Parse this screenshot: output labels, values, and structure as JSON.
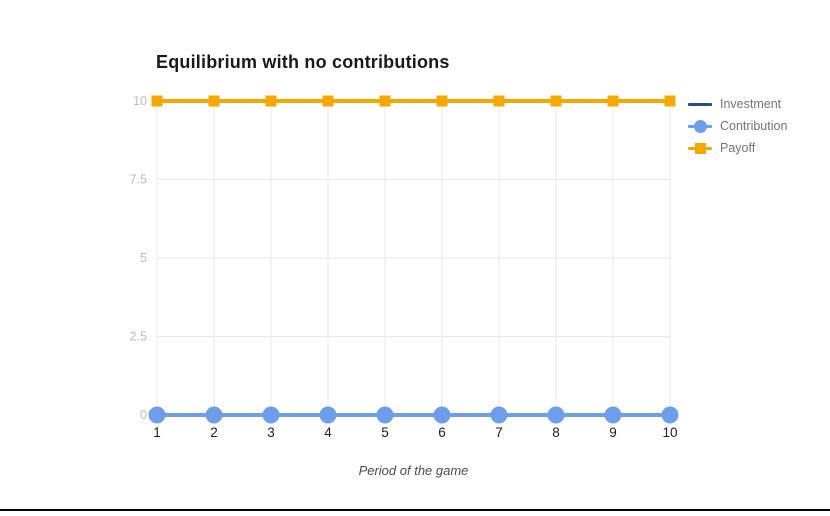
{
  "chart_data": {
    "type": "line",
    "title": "Equilibrium with no contributions",
    "xlabel": "Period of the game",
    "ylabel": "",
    "x": [
      1,
      2,
      3,
      4,
      5,
      6,
      7,
      8,
      9,
      10
    ],
    "x_tick_labels": [
      "1",
      "2",
      "3",
      "4",
      "5",
      "6",
      "7",
      "8",
      "9",
      "10"
    ],
    "y_ticks": [
      0,
      2.5,
      5,
      7.5,
      10
    ],
    "y_tick_labels": [
      "0",
      "2.5",
      "5",
      "7.5",
      "10"
    ],
    "ylim": [
      0,
      10
    ],
    "grid": true,
    "legend_position": "right",
    "series": [
      {
        "name": "Investment",
        "color": "#2b4d82",
        "marker": "none",
        "values": [
          0,
          0,
          0,
          0,
          0,
          0,
          0,
          0,
          0,
          0
        ]
      },
      {
        "name": "Contribution",
        "color": "#6d9eeb",
        "marker": "circle",
        "values": [
          0,
          0,
          0,
          0,
          0,
          0,
          0,
          0,
          0,
          0
        ]
      },
      {
        "name": "Payoff",
        "color": "#f5a800",
        "marker": "square",
        "values": [
          10,
          10,
          10,
          10,
          10,
          10,
          10,
          10,
          10,
          10
        ]
      }
    ],
    "colors": {
      "gridline": "#e8e8e8",
      "y_tick_label": "#bdbdbd",
      "x_tick_label": "#212121",
      "title": "#1a1a1a",
      "legend_text": "#757575"
    }
  }
}
